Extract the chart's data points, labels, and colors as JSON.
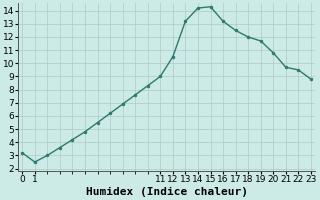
{
  "xlabel": "Humidex (Indice chaleur)",
  "x": [
    0,
    1,
    2,
    3,
    4,
    5,
    6,
    7,
    8,
    9,
    10,
    11,
    12,
    13,
    14,
    15,
    16,
    17,
    18,
    19,
    20,
    21,
    22,
    23
  ],
  "y": [
    3.2,
    2.5,
    3.0,
    3.6,
    4.2,
    4.8,
    5.5,
    6.2,
    6.9,
    7.6,
    8.3,
    9.0,
    10.5,
    13.2,
    14.2,
    14.3,
    13.2,
    12.5,
    12.0,
    11.7,
    10.8,
    9.7,
    9.5,
    8.8
  ],
  "line_color": "#2d7a6e",
  "marker": "o",
  "marker_size": 2.0,
  "bg_color": "#cceae6",
  "grid_color": "#b0c8c4",
  "ylim": [
    1.8,
    14.6
  ],
  "yticks": [
    2,
    3,
    4,
    5,
    6,
    7,
    8,
    9,
    10,
    11,
    12,
    13,
    14
  ],
  "xtick_positions": [
    0,
    1,
    11,
    12,
    13,
    14,
    15,
    16,
    17,
    18,
    19,
    20,
    21,
    22,
    23
  ],
  "xtick_labels": [
    "0",
    "1",
    "11",
    "12",
    "13",
    "14",
    "15",
    "16",
    "17",
    "18",
    "19",
    "20",
    "21",
    "22",
    "23"
  ],
  "xlabel_fontsize": 8,
  "tick_fontsize": 6.5,
  "line_width": 1.0
}
